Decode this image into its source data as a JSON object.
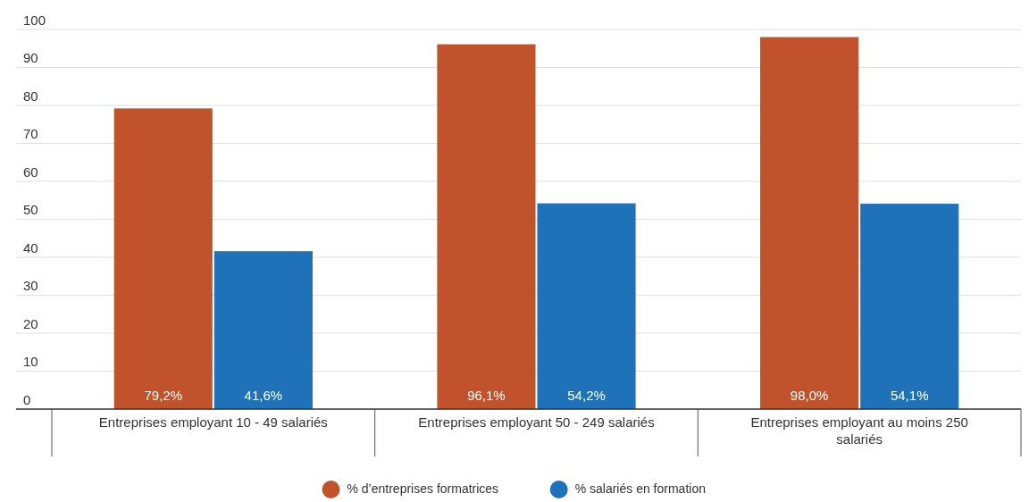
{
  "chart_data": {
    "type": "bar",
    "categories": [
      "Entreprises employant 10 - 49 salariés",
      "Entreprises employant 50 - 249 salariés",
      "Entreprises employant au moins 250 salariés"
    ],
    "series": [
      {
        "name": "% d’entreprises formatrices",
        "color": "#c0532b",
        "values": [
          79.2,
          96.1,
          98.0
        ],
        "value_labels": [
          "79,2%",
          "96,1%",
          "98,0%"
        ]
      },
      {
        "name": "% salariés en formation",
        "color": "#1f72b8",
        "values": [
          41.6,
          54.2,
          54.1
        ],
        "value_labels": [
          "41,6%",
          "54,2%",
          "54,1%"
        ]
      }
    ],
    "ylim": [
      0,
      100
    ],
    "yticks": [
      0,
      10,
      20,
      30,
      40,
      50,
      60,
      70,
      80,
      90,
      100
    ],
    "grid": "y",
    "legend": "bottom"
  }
}
